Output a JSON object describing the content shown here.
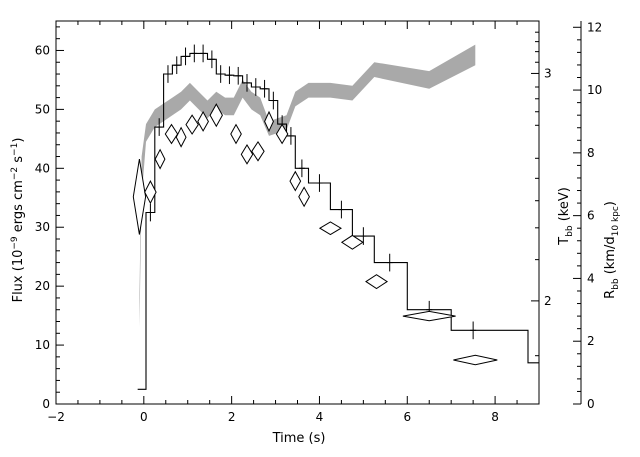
{
  "chart_data": {
    "type": "line",
    "title": "",
    "xlabel": "Time (s)",
    "xlim": [
      -2,
      9
    ],
    "xticks": [
      -2,
      0,
      2,
      4,
      6,
      8
    ],
    "left_axis": {
      "label_parts": [
        "Flux (10",
        "−9",
        " ergs cm",
        "−2",
        " s",
        "−1",
        ")"
      ],
      "ylim": [
        0,
        65
      ],
      "ticks": [
        0,
        10,
        20,
        30,
        40,
        50,
        60
      ]
    },
    "right_axis_outer": {
      "label_parts": [
        "R",
        "bb",
        " (km/d",
        "10 kpc",
        ")"
      ],
      "ylim": [
        0,
        12.2
      ],
      "ticks": [
        0,
        2,
        4,
        6,
        8,
        10,
        12
      ]
    },
    "right_axis_inner": {
      "label_parts": [
        "T",
        "bb",
        " (keV)"
      ],
      "tick_labels": [
        {
          "value": 2,
          "flux_position": 17.5
        },
        {
          "value": 3,
          "flux_position": 56.1
        }
      ],
      "minor_tick_flux_positions": [
        8.2,
        24.5,
        29.9,
        34.5,
        38.3,
        41.7,
        47.3,
        49.6,
        51.8,
        53.8,
        58.0,
        59.8,
        61.5,
        63.1
      ]
    },
    "series": [
      {
        "type": "step",
        "axis": "flux",
        "edges": [
          -0.1,
          0.05,
          0.25,
          0.45,
          0.65,
          0.85,
          1.05,
          1.25,
          1.45,
          1.65,
          1.85,
          2.05,
          2.25,
          2.45,
          2.65,
          2.85,
          3.05,
          3.25,
          3.45,
          3.75,
          4.25,
          4.75,
          5.25,
          6.0,
          7.0,
          8.75,
          9.0
        ],
        "values": [
          2.5,
          32.5,
          47,
          56,
          57.5,
          59,
          59.5,
          59.5,
          58.5,
          56,
          55.8,
          55.7,
          54.5,
          53.8,
          53.5,
          51.5,
          47.5,
          45.5,
          40,
          37.5,
          33,
          28.5,
          24,
          16,
          12.5,
          7
        ],
        "first_value": 2.5
      },
      {
        "type": "points",
        "axis": "flux",
        "points": [
          [
            0.15,
            32.5
          ],
          [
            0.35,
            47
          ],
          [
            0.55,
            56
          ],
          [
            0.75,
            57.5
          ],
          [
            0.95,
            59
          ],
          [
            1.15,
            59.5
          ],
          [
            1.35,
            59.5
          ],
          [
            1.55,
            58.5
          ],
          [
            1.75,
            56
          ],
          [
            1.95,
            55.8
          ],
          [
            2.15,
            55.7
          ],
          [
            2.35,
            54.5
          ],
          [
            2.55,
            53.8
          ],
          [
            2.75,
            53.5
          ],
          [
            2.95,
            51.5
          ],
          [
            3.15,
            47.5
          ],
          [
            3.35,
            45.5
          ],
          [
            3.6,
            40
          ],
          [
            4.0,
            37.5
          ],
          [
            4.5,
            33
          ],
          [
            5.0,
            28.5
          ],
          [
            5.6,
            24
          ],
          [
            6.5,
            16
          ],
          [
            7.5,
            12.5
          ]
        ],
        "yerr": 1.5
      },
      {
        "type": "diamonds",
        "axis": "radius",
        "points": [
          {
            "x": -0.1,
            "y": 6.6,
            "dx": 0.14,
            "dy": 1.2
          },
          {
            "x": 0.15,
            "y": 6.75,
            "dx": 0.13,
            "dy": 0.35
          },
          {
            "x": 0.37,
            "y": 7.8,
            "dx": 0.11,
            "dy": 0.3
          },
          {
            "x": 0.63,
            "y": 8.6,
            "dx": 0.14,
            "dy": 0.3
          },
          {
            "x": 0.85,
            "y": 8.5,
            "dx": 0.11,
            "dy": 0.3
          },
          {
            "x": 1.1,
            "y": 8.9,
            "dx": 0.14,
            "dy": 0.3
          },
          {
            "x": 1.35,
            "y": 9.0,
            "dx": 0.12,
            "dy": 0.3
          },
          {
            "x": 1.65,
            "y": 9.2,
            "dx": 0.14,
            "dy": 0.35
          },
          {
            "x": 2.1,
            "y": 8.6,
            "dx": 0.12,
            "dy": 0.3
          },
          {
            "x": 2.35,
            "y": 7.95,
            "dx": 0.13,
            "dy": 0.3
          },
          {
            "x": 2.6,
            "y": 8.05,
            "dx": 0.14,
            "dy": 0.3
          },
          {
            "x": 2.85,
            "y": 9.0,
            "dx": 0.1,
            "dy": 0.3
          },
          {
            "x": 3.15,
            "y": 8.6,
            "dx": 0.13,
            "dy": 0.3
          },
          {
            "x": 3.45,
            "y": 7.1,
            "dx": 0.12,
            "dy": 0.3
          },
          {
            "x": 3.65,
            "y": 6.6,
            "dx": 0.12,
            "dy": 0.3
          },
          {
            "x": 4.25,
            "y": 5.6,
            "dx": 0.24,
            "dy": 0.2
          },
          {
            "x": 4.75,
            "y": 5.15,
            "dx": 0.24,
            "dy": 0.22
          },
          {
            "x": 5.3,
            "y": 3.9,
            "dx": 0.24,
            "dy": 0.22
          },
          {
            "x": 6.5,
            "y": 2.8,
            "dx": 0.6,
            "dy": 0.15
          },
          {
            "x": 7.55,
            "y": 1.4,
            "dx": 0.5,
            "dy": 0.15
          }
        ]
      },
      {
        "type": "band",
        "axis": "flux",
        "color": "#a9a9a9",
        "x": [
          -0.1,
          -0.05,
          0.05,
          0.25,
          0.45,
          0.65,
          0.85,
          1.05,
          1.25,
          1.45,
          1.65,
          1.85,
          2.05,
          2.25,
          2.45,
          2.65,
          2.85,
          3.05,
          3.25,
          3.45,
          3.75,
          4.25,
          4.75,
          5.25,
          6.5,
          7.55
        ],
        "upper": [
          18,
          42,
          47.5,
          50,
          51,
          52,
          53,
          54.5,
          53,
          51.5,
          53,
          52,
          52,
          55,
          53,
          52,
          48,
          48.5,
          49,
          53,
          54.5,
          54.5,
          54,
          58,
          56.5,
          61
        ],
        "lower": [
          13,
          35,
          44.5,
          47,
          48,
          49,
          50,
          51.5,
          50,
          48.5,
          50,
          49,
          49,
          52,
          50,
          49,
          45.5,
          46,
          46.5,
          50.5,
          52,
          52,
          51.5,
          55.5,
          53.5,
          57.5
        ]
      }
    ]
  }
}
